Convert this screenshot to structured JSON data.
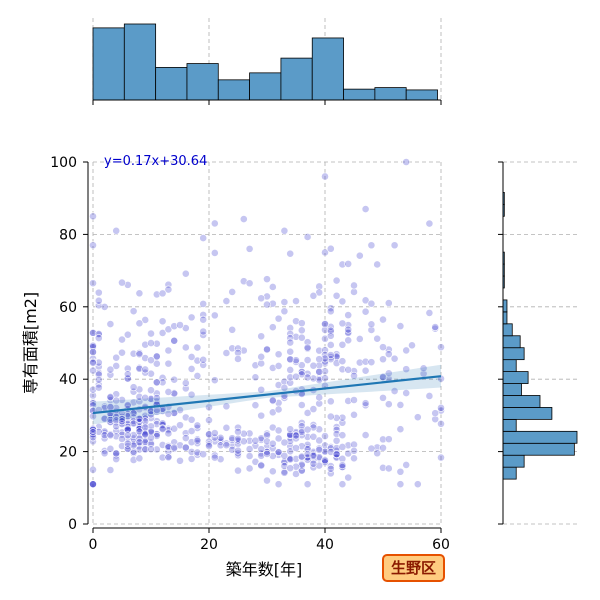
{
  "chart_data": {
    "type": "scatter",
    "xlabel": "築年数[年]",
    "ylabel": "専有面積[m2]",
    "xlim": [
      0,
      60
    ],
    "ylim": [
      0,
      100
    ],
    "xticks": [
      0,
      20,
      40,
      60
    ],
    "yticks": [
      0,
      20,
      40,
      60,
      80,
      100
    ],
    "grid": true,
    "colors": {
      "points": "#3333cc",
      "regression": "#1f77b4",
      "confidence_band": "#1f77b4",
      "histogram": "#5b9bc8",
      "badge_fill": "#ffcc80",
      "badge_border": "#e65100"
    },
    "regression": {
      "label": "y=0.17x+30.64",
      "slope": 0.17,
      "intercept": 30.64,
      "x_range": [
        0,
        60
      ]
    },
    "badge": "生野区",
    "top_histogram": {
      "bin_edges": [
        0,
        5.4,
        10.8,
        16.2,
        21.6,
        27,
        32.4,
        37.8,
        43.2,
        48.6,
        54,
        59.4
      ],
      "counts": [
        93,
        98,
        42,
        47,
        26,
        35,
        54,
        80,
        14,
        16,
        13
      ]
    },
    "right_histogram": {
      "bin_edges": [
        12.4,
        15.7,
        19.0,
        22.3,
        25.6,
        28.9,
        32.2,
        35.5,
        38.8,
        42.1,
        45.4,
        48.7,
        52.0,
        55.3,
        58.6,
        61.9,
        65.2,
        68.5,
        71.8,
        75.1,
        78.4,
        81.7,
        85.0,
        88.3,
        91.6
      ],
      "counts": [
        10,
        16,
        54,
        56,
        10,
        37,
        28,
        14,
        19,
        10,
        16,
        13,
        7,
        3,
        3,
        0,
        1,
        1,
        1,
        0,
        0,
        0,
        1,
        1
      ]
    },
    "points": {
      "clusters": [
        {
          "cx": 8,
          "cy": 27,
          "sx": 4.5,
          "sy": 4.5,
          "n": 210
        },
        {
          "cx": 22,
          "cy": 22,
          "sx": 4,
          "sy": 2.5,
          "n": 55
        },
        {
          "cx": 37,
          "cy": 20,
          "sx": 5,
          "sy": 4,
          "n": 130
        },
        {
          "cx": 36,
          "cy": 45,
          "sx": 6,
          "sy": 10,
          "n": 130
        },
        {
          "cx": 10,
          "cy": 45,
          "sx": 6,
          "sy": 10,
          "n": 90
        },
        {
          "cx": 50,
          "cy": 35,
          "sx": 7,
          "sy": 14,
          "n": 60
        },
        {
          "cx": 25,
          "cy": 55,
          "sx": 12,
          "sy": 14,
          "n": 45
        },
        {
          "cx": 0.3,
          "cy": 40,
          "sx": 0.4,
          "sy": 18,
          "n": 25
        }
      ],
      "extra": [
        [
          0,
          85
        ],
        [
          0,
          77
        ],
        [
          4,
          81
        ],
        [
          40,
          96
        ],
        [
          54,
          100
        ],
        [
          33,
          81
        ],
        [
          47,
          87
        ],
        [
          58,
          83
        ],
        [
          19,
          79
        ],
        [
          48,
          77
        ],
        [
          52,
          77
        ],
        [
          27,
          76
        ]
      ]
    }
  }
}
